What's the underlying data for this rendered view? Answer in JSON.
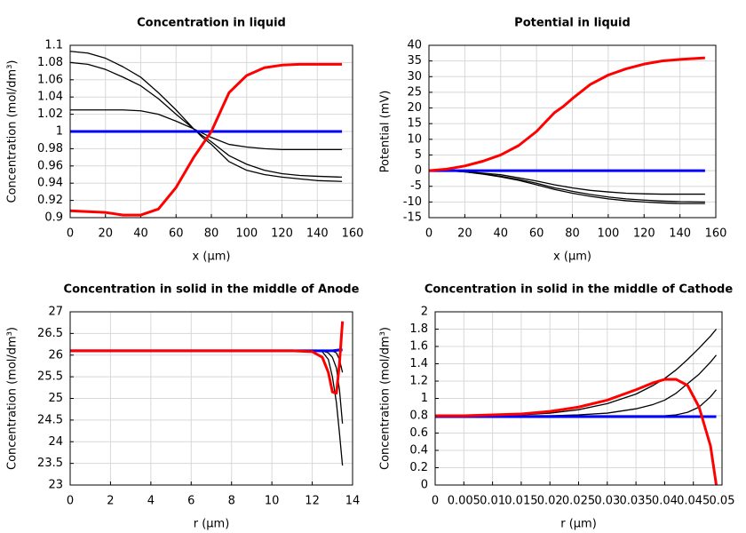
{
  "chart_data": [
    {
      "type": "line",
      "title": "Concentration in liquid",
      "xlabel": "x (µm)",
      "ylabel": "Concentration (mol/dm³)",
      "x": [
        0,
        10,
        20,
        30,
        40,
        50,
        60,
        70,
        75,
        80,
        90,
        100,
        110,
        120,
        130,
        140,
        154
      ],
      "xlim": [
        0,
        160
      ],
      "xticks": [
        0,
        20,
        40,
        60,
        80,
        100,
        120,
        140,
        160
      ],
      "ylim": [
        0.9,
        1.1
      ],
      "yticks": [
        0.9,
        0.92,
        0.94,
        0.96,
        0.98,
        1,
        1.02,
        1.04,
        1.06,
        1.08,
        1.1
      ],
      "grid": true,
      "series": [
        {
          "color": "#000000",
          "values": [
            1.093,
            1.091,
            1.085,
            1.075,
            1.063,
            1.045,
            1.025,
            1.003,
            0.993,
            0.985,
            0.965,
            0.955,
            0.95,
            0.947,
            0.945,
            0.943,
            0.942
          ]
        },
        {
          "color": "#000000",
          "values": [
            1.08,
            1.078,
            1.072,
            1.063,
            1.053,
            1.038,
            1.02,
            1.003,
            0.995,
            0.988,
            0.972,
            0.962,
            0.955,
            0.951,
            0.949,
            0.948,
            0.947
          ]
        },
        {
          "color": "#000000",
          "values": [
            1.025,
            1.025,
            1.025,
            1.025,
            1.024,
            1.02,
            1.012,
            1.003,
            0.998,
            0.993,
            0.985,
            0.982,
            0.98,
            0.979,
            0.979,
            0.979,
            0.979
          ]
        },
        {
          "color": "#0000ff",
          "values": [
            1,
            1,
            1,
            1,
            1,
            1,
            1,
            1,
            1,
            1,
            1,
            1,
            1,
            1,
            1,
            1,
            1
          ]
        },
        {
          "color": "#ff0000",
          "values": [
            0.908,
            0.907,
            0.906,
            0.903,
            0.903,
            0.91,
            0.935,
            0.97,
            0.985,
            1.0,
            1.045,
            1.065,
            1.074,
            1.077,
            1.078,
            1.078,
            1.078
          ]
        }
      ]
    },
    {
      "type": "line",
      "title": "Potential in liquid",
      "xlabel": "x (µm)",
      "ylabel": "Potential (mV)",
      "x": [
        0,
        10,
        20,
        30,
        40,
        50,
        60,
        70,
        75,
        80,
        90,
        100,
        110,
        120,
        130,
        140,
        154
      ],
      "xlim": [
        0,
        160
      ],
      "xticks": [
        0,
        20,
        40,
        60,
        80,
        100,
        120,
        140,
        160
      ],
      "ylim": [
        -15,
        40
      ],
      "yticks": [
        -15,
        -10,
        -5,
        0,
        5,
        10,
        15,
        20,
        25,
        30,
        35,
        40
      ],
      "grid": true,
      "series": [
        {
          "color": "#000000",
          "values": [
            0,
            0,
            -0.3,
            -0.8,
            -1.3,
            -2.3,
            -3.3,
            -4.5,
            -5,
            -5.5,
            -6.3,
            -6.8,
            -7.2,
            -7.4,
            -7.5,
            -7.5,
            -7.5
          ]
        },
        {
          "color": "#000000",
          "values": [
            0,
            0,
            -0.4,
            -1,
            -1.8,
            -2.8,
            -4,
            -5.5,
            -6,
            -6.6,
            -7.6,
            -8.4,
            -9,
            -9.4,
            -9.7,
            -9.9,
            -10
          ]
        },
        {
          "color": "#000000",
          "values": [
            0,
            0,
            -0.4,
            -1.1,
            -2,
            -3.1,
            -4.5,
            -6,
            -6.6,
            -7.2,
            -8.2,
            -9,
            -9.6,
            -10,
            -10.3,
            -10.5,
            -10.5
          ]
        },
        {
          "color": "#0000ff",
          "values": [
            0,
            0,
            0,
            0,
            0,
            0,
            0,
            0,
            0,
            0,
            0,
            0,
            0,
            0,
            0,
            0,
            0
          ]
        },
        {
          "color": "#ff0000",
          "values": [
            0,
            0.5,
            1.5,
            3,
            5,
            8,
            12.5,
            18.5,
            20.5,
            23,
            27.5,
            30.5,
            32.5,
            34,
            35,
            35.5,
            36
          ]
        }
      ]
    },
    {
      "type": "line",
      "title": "Concentration in solid in the middle of Anode",
      "xlabel": "r (µm)",
      "ylabel": "Concentration (mol/dm³)",
      "x": [
        0,
        2,
        4,
        6,
        8,
        10,
        11,
        12,
        12.5,
        12.8,
        13,
        13.2,
        13.35,
        13.5
      ],
      "xlim": [
        0,
        14
      ],
      "xticks": [
        0,
        2,
        4,
        6,
        8,
        10,
        12,
        14
      ],
      "ylim": [
        23,
        27
      ],
      "yticks": [
        23,
        23.5,
        24,
        24.5,
        25,
        25.5,
        26,
        26.5,
        27
      ],
      "grid": true,
      "series": [
        {
          "color": "#000000",
          "values": [
            26.1,
            26.1,
            26.1,
            26.1,
            26.1,
            26.1,
            26.1,
            26.1,
            26.08,
            25.9,
            25.5,
            24.9,
            24.2,
            23.45
          ]
        },
        {
          "color": "#000000",
          "values": [
            26.1,
            26.1,
            26.1,
            26.1,
            26.1,
            26.1,
            26.1,
            26.1,
            26.1,
            26.05,
            25.95,
            25.7,
            25.2,
            24.42
          ]
        },
        {
          "color": "#000000",
          "values": [
            26.1,
            26.1,
            26.1,
            26.1,
            26.1,
            26.1,
            26.1,
            26.1,
            26.1,
            26.1,
            26.1,
            26.05,
            25.9,
            25.6
          ]
        },
        {
          "color": "#0000ff",
          "values": [
            26.1,
            26.1,
            26.1,
            26.1,
            26.1,
            26.1,
            26.1,
            26.1,
            26.1,
            26.1,
            26.1,
            26.11,
            26.12,
            26.12
          ]
        },
        {
          "color": "#ff0000",
          "values": [
            26.1,
            26.1,
            26.1,
            26.1,
            26.1,
            26.1,
            26.1,
            26.08,
            25.95,
            25.6,
            25.15,
            25.12,
            25.8,
            26.78
          ]
        }
      ]
    },
    {
      "type": "line",
      "title": "Concentration in solid in the middle of Cathode",
      "xlabel": "r (µm)",
      "ylabel": "Concentration (mol/dm³)",
      "x": [
        0,
        0.005,
        0.01,
        0.015,
        0.02,
        0.025,
        0.03,
        0.035,
        0.038,
        0.04,
        0.042,
        0.044,
        0.046,
        0.048,
        0.049
      ],
      "xlim": [
        0,
        0.05
      ],
      "xticks": [
        0,
        0.005,
        0.01,
        0.015,
        0.02,
        0.025,
        0.03,
        0.035,
        0.04,
        0.045,
        0.05
      ],
      "ylim": [
        0,
        2
      ],
      "yticks": [
        0,
        0.2,
        0.4,
        0.6,
        0.8,
        1,
        1.2,
        1.4,
        1.6,
        1.8,
        2
      ],
      "grid": true,
      "series": [
        {
          "color": "#000000",
          "values": [
            0.8,
            0.8,
            0.8,
            0.81,
            0.83,
            0.87,
            0.94,
            1.05,
            1.15,
            1.23,
            1.33,
            1.45,
            1.58,
            1.72,
            1.8
          ]
        },
        {
          "color": "#000000",
          "values": [
            0.8,
            0.8,
            0.8,
            0.8,
            0.8,
            0.81,
            0.83,
            0.88,
            0.93,
            0.98,
            1.06,
            1.17,
            1.28,
            1.42,
            1.5
          ]
        },
        {
          "color": "#000000",
          "values": [
            0.8,
            0.8,
            0.8,
            0.8,
            0.8,
            0.8,
            0.8,
            0.8,
            0.8,
            0.8,
            0.81,
            0.84,
            0.9,
            1.02,
            1.1
          ]
        },
        {
          "color": "#0000ff",
          "values": [
            0.79,
            0.79,
            0.79,
            0.79,
            0.79,
            0.79,
            0.79,
            0.79,
            0.79,
            0.79,
            0.79,
            0.79,
            0.79,
            0.79,
            0.79
          ]
        },
        {
          "color": "#ff0000",
          "values": [
            0.8,
            0.8,
            0.81,
            0.82,
            0.85,
            0.9,
            0.98,
            1.1,
            1.18,
            1.22,
            1.22,
            1.15,
            0.9,
            0.45,
            0
          ]
        }
      ]
    }
  ]
}
